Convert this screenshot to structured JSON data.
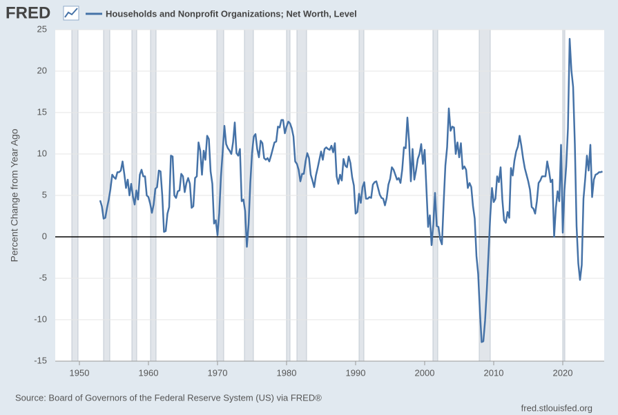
{
  "logo": "FRED",
  "chart_data": {
    "type": "line",
    "y_label": "Percent Change from Year Ago",
    "source": "Source: Board of Governors of the Federal Reserve System (US) via FRED®",
    "site": "fred.stlouisfed.org",
    "xlim": [
      1946.5,
      2026
    ],
    "xticks": [
      1950,
      1960,
      1970,
      1980,
      1990,
      2000,
      2010,
      2020
    ],
    "ylim": [
      -15,
      25
    ],
    "yticks": [
      -15,
      -10,
      -5,
      0,
      5,
      10,
      15,
      20,
      25
    ],
    "grid": true,
    "zero_line": true,
    "shaded_periods": [
      [
        1948.9,
        1949.8
      ],
      [
        1953.5,
        1954.4
      ],
      [
        1957.6,
        1958.3
      ],
      [
        1960.3,
        1961.1
      ],
      [
        1969.9,
        1970.9
      ],
      [
        1973.9,
        1975.2
      ],
      [
        1980.0,
        1980.5
      ],
      [
        1981.5,
        1982.9
      ],
      [
        1990.5,
        1991.2
      ],
      [
        2001.2,
        2001.9
      ],
      [
        2007.9,
        2009.5
      ],
      [
        2020.0,
        2020.3
      ]
    ],
    "x": [
      1953.0,
      1953.25,
      1953.5,
      1953.75,
      1954.0,
      1954.25,
      1954.5,
      1954.75,
      1955.0,
      1955.25,
      1955.5,
      1955.75,
      1956.0,
      1956.25,
      1956.5,
      1956.75,
      1957.0,
      1957.25,
      1957.5,
      1957.75,
      1958.0,
      1958.25,
      1958.5,
      1958.75,
      1959.0,
      1959.25,
      1959.5,
      1959.75,
      1960.0,
      1960.25,
      1960.5,
      1960.75,
      1961.0,
      1961.25,
      1961.5,
      1961.75,
      1962.0,
      1962.25,
      1962.5,
      1962.75,
      1963.0,
      1963.25,
      1963.5,
      1963.75,
      1964.0,
      1964.25,
      1964.5,
      1964.75,
      1965.0,
      1965.25,
      1965.5,
      1965.75,
      1966.0,
      1966.25,
      1966.5,
      1966.75,
      1967.0,
      1967.25,
      1967.5,
      1967.75,
      1968.0,
      1968.25,
      1968.5,
      1968.75,
      1969.0,
      1969.25,
      1969.5,
      1969.75,
      1970.0,
      1970.25,
      1970.5,
      1970.75,
      1971.0,
      1971.25,
      1971.5,
      1971.75,
      1972.0,
      1972.25,
      1972.5,
      1972.75,
      1973.0,
      1973.25,
      1973.5,
      1973.75,
      1974.0,
      1974.25,
      1974.5,
      1974.75,
      1975.0,
      1975.25,
      1975.5,
      1975.75,
      1976.0,
      1976.25,
      1976.5,
      1976.75,
      1977.0,
      1977.25,
      1977.5,
      1977.75,
      1978.0,
      1978.25,
      1978.5,
      1978.75,
      1979.0,
      1979.25,
      1979.5,
      1979.75,
      1980.0,
      1980.25,
      1980.5,
      1980.75,
      1981.0,
      1981.25,
      1981.5,
      1981.75,
      1982.0,
      1982.25,
      1982.5,
      1982.75,
      1983.0,
      1983.25,
      1983.5,
      1983.75,
      1984.0,
      1984.25,
      1984.5,
      1984.75,
      1985.0,
      1985.25,
      1985.5,
      1985.75,
      1986.0,
      1986.25,
      1986.5,
      1986.75,
      1987.0,
      1987.25,
      1987.5,
      1987.75,
      1988.0,
      1988.25,
      1988.5,
      1988.75,
      1989.0,
      1989.25,
      1989.5,
      1989.75,
      1990.0,
      1990.25,
      1990.5,
      1990.75,
      1991.0,
      1991.25,
      1991.5,
      1991.75,
      1992.0,
      1992.25,
      1992.5,
      1992.75,
      1993.0,
      1993.25,
      1993.5,
      1993.75,
      1994.0,
      1994.25,
      1994.5,
      1994.75,
      1995.0,
      1995.25,
      1995.5,
      1995.75,
      1996.0,
      1996.25,
      1996.5,
      1996.75,
      1997.0,
      1997.25,
      1997.5,
      1997.75,
      1998.0,
      1998.25,
      1998.5,
      1998.75,
      1999.0,
      1999.25,
      1999.5,
      1999.75,
      2000.0,
      2000.25,
      2000.5,
      2000.75,
      2001.0,
      2001.25,
      2001.5,
      2001.75,
      2002.0,
      2002.25,
      2002.5,
      2002.75,
      2003.0,
      2003.25,
      2003.5,
      2003.75,
      2004.0,
      2004.25,
      2004.5,
      2004.75,
      2005.0,
      2005.25,
      2005.5,
      2005.75,
      2006.0,
      2006.25,
      2006.5,
      2006.75,
      2007.0,
      2007.25,
      2007.5,
      2007.75,
      2008.0,
      2008.25,
      2008.5,
      2008.75,
      2009.0,
      2009.25,
      2009.5,
      2009.75,
      2010.0,
      2010.25,
      2010.5,
      2010.75,
      2011.0,
      2011.25,
      2011.5,
      2011.75,
      2012.0,
      2012.25,
      2012.5,
      2012.75,
      2013.0,
      2013.25,
      2013.5,
      2013.75,
      2014.0,
      2014.25,
      2014.5,
      2014.75,
      2015.0,
      2015.25,
      2015.5,
      2015.75,
      2016.0,
      2016.25,
      2016.5,
      2016.75,
      2017.0,
      2017.25,
      2017.5,
      2017.75,
      2018.0,
      2018.25,
      2018.5,
      2018.75,
      2019.0,
      2019.25,
      2019.5,
      2019.75,
      2020.0,
      2020.25,
      2020.5,
      2020.75,
      2021.0,
      2021.25,
      2021.5,
      2021.75,
      2022.0,
      2022.25,
      2022.5,
      2022.75,
      2023.0,
      2023.25,
      2023.5,
      2023.75,
      2024.0,
      2024.25,
      2024.5,
      2024.75,
      2025.0,
      2025.25,
      2025.5,
      2025.75
    ],
    "series": [
      {
        "name": "Households and Nonprofit Organizations; Net Worth, Level",
        "color": "#4572a7",
        "values": [
          4.4,
          3.7,
          2.2,
          2.3,
          3.5,
          4.5,
          5.8,
          7.5,
          7.2,
          7.0,
          7.8,
          7.8,
          8.0,
          9.1,
          7.6,
          5.9,
          6.9,
          5.0,
          6.4,
          4.9,
          3.9,
          5.6,
          4.5,
          7.5,
          8.1,
          7.3,
          7.3,
          5.0,
          4.8,
          4.0,
          2.9,
          3.9,
          5.8,
          6.0,
          8.0,
          7.9,
          5.0,
          0.6,
          0.7,
          2.8,
          3.6,
          9.8,
          9.7,
          5.0,
          4.7,
          5.5,
          5.6,
          7.6,
          7.3,
          5.4,
          6.5,
          7.1,
          6.4,
          3.5,
          3.7,
          7.1,
          7.3,
          11.4,
          10.4,
          7.5,
          10.4,
          9.3,
          12.2,
          11.8,
          7.9,
          6.4,
          1.6,
          2.0,
          0.2,
          2.9,
          7.3,
          10.3,
          13.4,
          11.2,
          10.7,
          10.4,
          10.0,
          11.4,
          13.8,
          10.1,
          9.8,
          10.6,
          4.3,
          4.5,
          3.1,
          -1.2,
          1.5,
          6.5,
          10.1,
          12.1,
          12.4,
          10.6,
          9.6,
          11.6,
          11.3,
          9.5,
          9.3,
          9.5,
          9.1,
          9.8,
          10.6,
          11.4,
          11.5,
          13.3,
          13.2,
          14.1,
          14.1,
          12.5,
          13.3,
          13.9,
          13.7,
          13.1,
          12.1,
          9.1,
          8.8,
          8.1,
          6.7,
          7.6,
          7.6,
          9.1,
          10.1,
          9.5,
          7.5,
          6.8,
          6.0,
          7.4,
          8.3,
          9.3,
          10.3,
          9.3,
          10.6,
          10.8,
          10.6,
          10.5,
          11.0,
          10.2,
          11.3,
          7.3,
          6.4,
          7.5,
          6.8,
          9.4,
          8.6,
          8.4,
          9.7,
          8.9,
          7.2,
          6.2,
          2.8,
          3.0,
          5.2,
          4.1,
          6.0,
          6.6,
          4.6,
          4.6,
          4.8,
          4.7,
          6.3,
          6.6,
          6.7,
          5.9,
          5.1,
          4.7,
          4.6,
          3.8,
          4.7,
          6.3,
          7.0,
          8.4,
          8.1,
          7.5,
          6.9,
          7.1,
          6.5,
          8.1,
          10.8,
          10.7,
          14.4,
          11.5,
          6.7,
          10.6,
          6.9,
          8.0,
          9.4,
          10.0,
          11.2,
          8.8,
          10.5,
          5.9,
          1.2,
          2.6,
          -1.0,
          1.5,
          5.3,
          1.3,
          1.2,
          -0.3,
          -0.9,
          4.1,
          8.6,
          10.8,
          15.5,
          12.8,
          13.3,
          13.2,
          10.0,
          11.4,
          9.6,
          11.3,
          8.2,
          8.5,
          8.1,
          5.9,
          6.5,
          6.0,
          3.7,
          2.2,
          -2.3,
          -4.5,
          -9.0,
          -12.7,
          -12.6,
          -10.1,
          -6.4,
          -2.0,
          2.5,
          5.9,
          4.2,
          4.6,
          7.3,
          6.6,
          8.4,
          4.5,
          2.0,
          1.7,
          3.0,
          2.3,
          8.3,
          7.4,
          9.2,
          10.3,
          10.9,
          12.2,
          11.0,
          9.5,
          8.3,
          7.5,
          6.7,
          5.7,
          3.6,
          3.4,
          2.8,
          4.3,
          6.5,
          6.8,
          7.3,
          7.3,
          7.3,
          9.1,
          8.0,
          6.6,
          6.9,
          0.0,
          3.5,
          5.5,
          4.3,
          11.1,
          0.5,
          5.7,
          8.5,
          13.1,
          23.9,
          20.1,
          18.1,
          11.2,
          1.3,
          -3.2,
          -5.2,
          -3.4,
          4.6,
          7.0,
          9.8,
          8.0,
          11.1,
          4.8,
          6.9,
          7.5,
          7.6,
          7.8,
          7.8,
          7.9
        ]
      }
    ]
  }
}
